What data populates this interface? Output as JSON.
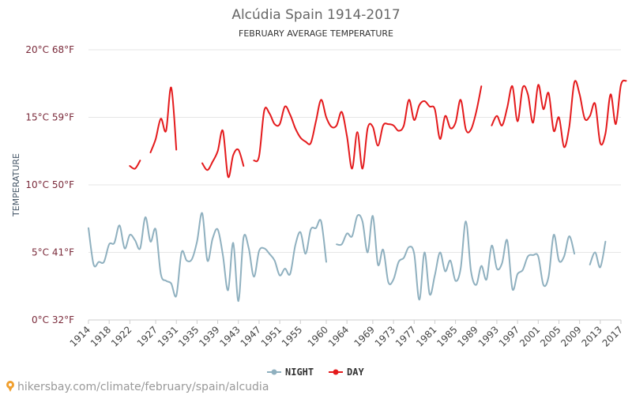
{
  "chart_data": {
    "type": "line",
    "title": "Alcúdia Spain 1914-2017",
    "subtitle": "FEBRUARY AVERAGE TEMPERATURE",
    "ylabel": "TEMPERATURE",
    "xlabel": "",
    "xlim": [
      1914,
      2017
    ],
    "ylim": [
      0,
      20
    ],
    "y_ticks": [
      {
        "value": 0,
        "label": "0°C 32°F"
      },
      {
        "value": 5,
        "label": "5°C 41°F"
      },
      {
        "value": 10,
        "label": "10°C 50°F"
      },
      {
        "value": 15,
        "label": "15°C 59°F"
      },
      {
        "value": 20,
        "label": "20°C 68°F"
      }
    ],
    "x_ticks": [
      1914,
      1918,
      1922,
      1927,
      1931,
      1935,
      1939,
      1943,
      1947,
      1951,
      1955,
      1960,
      1964,
      1969,
      1973,
      1977,
      1981,
      1985,
      1989,
      1993,
      1997,
      2001,
      2005,
      2009,
      2013,
      2017
    ],
    "grid": true,
    "legend_position": "bottom",
    "series": [
      {
        "name": "NIGHT",
        "color": "#8fb0bf",
        "values": [
          6.8,
          4.1,
          4.3,
          4.3,
          5.6,
          5.7,
          7.0,
          5.3,
          6.3,
          5.9,
          5.3,
          7.6,
          5.8,
          6.7,
          3.4,
          2.9,
          2.7,
          1.8,
          5.0,
          4.4,
          4.5,
          5.8,
          7.9,
          4.4,
          6.0,
          6.7,
          4.8,
          2.2,
          5.7,
          1.4,
          6.1,
          5.3,
          3.2,
          5.1,
          5.3,
          4.9,
          4.4,
          3.3,
          3.8,
          3.4,
          5.5,
          6.5,
          4.9,
          6.7,
          6.8,
          7.3,
          4.3,
          null,
          5.6,
          5.6,
          6.4,
          6.2,
          7.7,
          7.3,
          5.0,
          7.7,
          4.1,
          5.2,
          2.8,
          3.0,
          4.3,
          4.6,
          5.4,
          4.9,
          1.5,
          5.0,
          1.9,
          3.3,
          5.0,
          3.6,
          4.4,
          2.9,
          3.8,
          7.3,
          3.6,
          2.6,
          4.0,
          3.0,
          5.5,
          3.8,
          4.2,
          5.9,
          2.3,
          3.4,
          3.7,
          4.7,
          4.8,
          4.7,
          2.6,
          3.2,
          6.3,
          4.4,
          4.7,
          6.2,
          4.9,
          null,
          null,
          4.1,
          5.0,
          3.9,
          5.8
        ],
        "x_start": 1914
      },
      {
        "name": "DAY",
        "color": "#e41a1c",
        "values": [
          null,
          null,
          null,
          null,
          11.4,
          11.2,
          11.8,
          null,
          12.4,
          13.4,
          14.9,
          14.0,
          17.2,
          12.6,
          null,
          null,
          null,
          null,
          11.6,
          11.1,
          11.7,
          12.5,
          14.0,
          10.6,
          12.2,
          12.6,
          11.4,
          null,
          11.8,
          12.1,
          15.5,
          15.3,
          14.5,
          14.5,
          15.8,
          15.2,
          14.2,
          13.5,
          13.2,
          13.1,
          14.7,
          16.3,
          15.0,
          14.3,
          14.4,
          15.4,
          13.6,
          11.2,
          13.9,
          11.2,
          14.2,
          14.3,
          12.9,
          14.4,
          14.5,
          14.4,
          14.0,
          14.4,
          16.3,
          14.8,
          15.9,
          16.2,
          15.8,
          15.6,
          13.4,
          15.1,
          14.2,
          14.6,
          16.3,
          14.1,
          14.1,
          15.4,
          17.3,
          null,
          14.4,
          15.1,
          14.4,
          15.7,
          17.3,
          14.7,
          17.2,
          16.7,
          14.6,
          17.4,
          15.6,
          16.8,
          14.0,
          15.0,
          12.8,
          14.3,
          17.6,
          16.7,
          14.9,
          15.1,
          16.0,
          13.1,
          13.8,
          16.7,
          14.5,
          17.4,
          17.7
        ],
        "x_start": 1918
      }
    ]
  },
  "watermark_text": "hikersbay.com/climate/february/spain/alcudia",
  "watermark_icon": "map-pin-icon"
}
